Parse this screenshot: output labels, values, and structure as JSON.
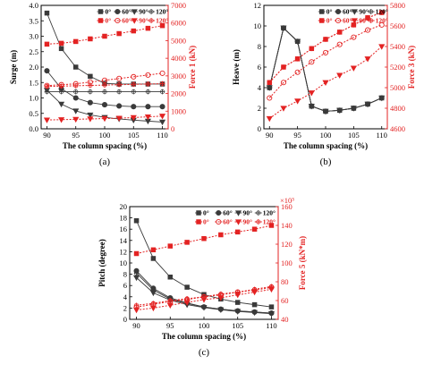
{
  "chart_data": [
    {
      "type": "line",
      "panel_label": "(a)",
      "xlabel": "The column spacing (%)",
      "ylabel": "Surge (m)",
      "y2label": "Force 1 (kN)",
      "xlim": [
        89,
        111
      ],
      "ylim": [
        0,
        4
      ],
      "y2lim": [
        0,
        7000
      ],
      "xticks": [
        90,
        95,
        100,
        105,
        110
      ],
      "yticks": [
        0.0,
        0.5,
        1.0,
        1.5,
        2.0,
        2.5,
        3.0,
        3.5,
        4.0
      ],
      "y2ticks": [
        0,
        1000,
        2000,
        3000,
        4000,
        5000,
        6000,
        7000
      ],
      "y_scale_label": "",
      "legend": {
        "row1": [
          "0°",
          "60°",
          "90°",
          "120°"
        ],
        "row2": [
          "0°",
          "60°",
          "90°",
          "120°"
        ]
      },
      "x": [
        90,
        92.5,
        95,
        97.5,
        100,
        102.5,
        105,
        107.5,
        110
      ],
      "series": [
        {
          "name": "0°",
          "axis": "left",
          "values": [
            3.75,
            2.6,
            2.0,
            1.7,
            1.47,
            1.45,
            1.45,
            1.45,
            1.45
          ]
        },
        {
          "name": "60°",
          "axis": "left",
          "values": [
            1.88,
            1.3,
            1.0,
            0.85,
            0.78,
            0.74,
            0.72,
            0.72,
            0.72
          ]
        },
        {
          "name": "90°",
          "axis": "left",
          "values": [
            1.25,
            0.8,
            0.58,
            0.45,
            0.37,
            0.32,
            0.28,
            0.25,
            0.22
          ]
        },
        {
          "name": "120°",
          "axis": "left",
          "values": [
            1.2,
            1.2,
            1.2,
            1.2,
            1.2,
            1.2,
            1.2,
            1.2,
            1.2
          ]
        },
        {
          "name": "0°",
          "axis": "right",
          "values": [
            4800,
            4850,
            4950,
            5100,
            5250,
            5400,
            5550,
            5700,
            5850
          ]
        },
        {
          "name": "60°",
          "axis": "right",
          "values": [
            2450,
            2500,
            2550,
            2650,
            2750,
            2850,
            2950,
            3050,
            3150
          ]
        },
        {
          "name": "90°",
          "axis": "right",
          "values": [
            500,
            520,
            540,
            560,
            580,
            600,
            640,
            680,
            720
          ]
        },
        {
          "name": "120°",
          "axis": "right",
          "values": [
            2400,
            2420,
            2440,
            2460,
            2480,
            2500,
            2520,
            2540,
            2560
          ]
        }
      ]
    },
    {
      "type": "line",
      "panel_label": "(b)",
      "xlabel": "The column spacing (%)",
      "ylabel": "Heave (m)",
      "y2label": "Force 3 (kN)",
      "xlim": [
        89,
        111
      ],
      "ylim": [
        0,
        12
      ],
      "y2lim": [
        4600,
        5800
      ],
      "xticks": [
        90,
        95,
        100,
        105,
        110
      ],
      "yticks": [
        0,
        2,
        4,
        6,
        8,
        10,
        12
      ],
      "y2ticks": [
        4600,
        4800,
        5000,
        5200,
        5400,
        5600,
        5800
      ],
      "y_scale_label": "",
      "legend": {
        "row1": [
          "0°",
          "60°",
          "90°",
          "120°"
        ],
        "row2": [
          "0°",
          "60°",
          "90°",
          "120°"
        ]
      },
      "x": [
        90,
        92.5,
        95,
        97.5,
        100,
        102.5,
        105,
        107.5,
        110
      ],
      "series": [
        {
          "name": "0°",
          "axis": "left",
          "values": [
            4.0,
            9.8,
            8.5,
            2.2,
            1.7,
            1.8,
            2.0,
            2.4,
            3.0
          ]
        },
        {
          "name": "60°",
          "axis": "left",
          "values": [
            4.0,
            9.8,
            8.5,
            2.2,
            1.7,
            1.8,
            2.0,
            2.4,
            3.0
          ]
        },
        {
          "name": "90°",
          "axis": "left",
          "values": [
            4.0,
            9.8,
            8.5,
            2.2,
            1.7,
            1.8,
            2.0,
            2.4,
            3.0
          ]
        },
        {
          "name": "120°",
          "axis": "left",
          "values": [
            4.0,
            9.8,
            8.5,
            2.2,
            1.7,
            1.8,
            2.0,
            2.4,
            3.0
          ]
        },
        {
          "name": "0°",
          "axis": "right",
          "values": [
            5050,
            5200,
            5280,
            5380,
            5470,
            5540,
            5610,
            5680,
            5730
          ]
        },
        {
          "name": "60°",
          "axis": "right",
          "values": [
            4900,
            5050,
            5150,
            5250,
            5340,
            5420,
            5490,
            5560,
            5610
          ]
        },
        {
          "name": "90°",
          "axis": "right",
          "values": [
            4700,
            4800,
            4870,
            4950,
            5050,
            5120,
            5190,
            5280,
            5400
          ]
        },
        {
          "name": "120°",
          "axis": "right",
          "values": [
            5050,
            5200,
            5280,
            5380,
            5470,
            5540,
            5610,
            5680,
            5730
          ]
        }
      ]
    },
    {
      "type": "line",
      "panel_label": "(c)",
      "xlabel": "The column spacing (%)",
      "ylabel": "Pitch (degree)",
      "y2label": "Force 5 (kN*m)",
      "xlim": [
        89,
        111
      ],
      "ylim": [
        0,
        20
      ],
      "y2lim": [
        40,
        160
      ],
      "xticks": [
        90,
        95,
        100,
        105,
        110
      ],
      "yticks": [
        0,
        2,
        4,
        6,
        8,
        10,
        12,
        14,
        16,
        18,
        20
      ],
      "y2ticks": [
        40,
        60,
        80,
        100,
        120,
        140,
        160
      ],
      "y_scale_label": "×10³",
      "legend": {
        "row1": [
          "0°",
          "60°",
          "90°",
          "120°"
        ],
        "row2": [
          "0°",
          "60°",
          "90°",
          "120°"
        ]
      },
      "x": [
        90,
        92.5,
        95,
        97.5,
        100,
        102.5,
        105,
        107.5,
        110
      ],
      "series": [
        {
          "name": "0°",
          "axis": "left",
          "values": [
            17.5,
            10.8,
            7.5,
            5.7,
            4.4,
            3.6,
            3.0,
            2.6,
            2.2
          ]
        },
        {
          "name": "60°",
          "axis": "left",
          "values": [
            8.6,
            5.5,
            3.8,
            2.9,
            2.2,
            1.8,
            1.5,
            1.3,
            1.1
          ]
        },
        {
          "name": "90°",
          "axis": "left",
          "values": [
            7.4,
            4.7,
            3.4,
            2.6,
            2.1,
            1.7,
            1.4,
            1.2,
            1.0
          ]
        },
        {
          "name": "120°",
          "axis": "left",
          "values": [
            8.2,
            5.2,
            3.6,
            2.8,
            2.2,
            1.8,
            1.5,
            1.3,
            1.1
          ]
        },
        {
          "name": "0°",
          "axis": "right",
          "values": [
            110,
            114,
            118,
            122,
            126,
            130,
            133,
            136,
            140
          ]
        },
        {
          "name": "60°",
          "axis": "right",
          "values": [
            53,
            56,
            59,
            61,
            64,
            66,
            69,
            71,
            74
          ]
        },
        {
          "name": "90°",
          "axis": "right",
          "values": [
            50,
            52,
            55,
            58,
            61,
            63,
            66,
            69,
            72
          ]
        },
        {
          "name": "120°",
          "axis": "right",
          "values": [
            55,
            57,
            60,
            62,
            64,
            67,
            69,
            72,
            75
          ]
        }
      ]
    }
  ]
}
